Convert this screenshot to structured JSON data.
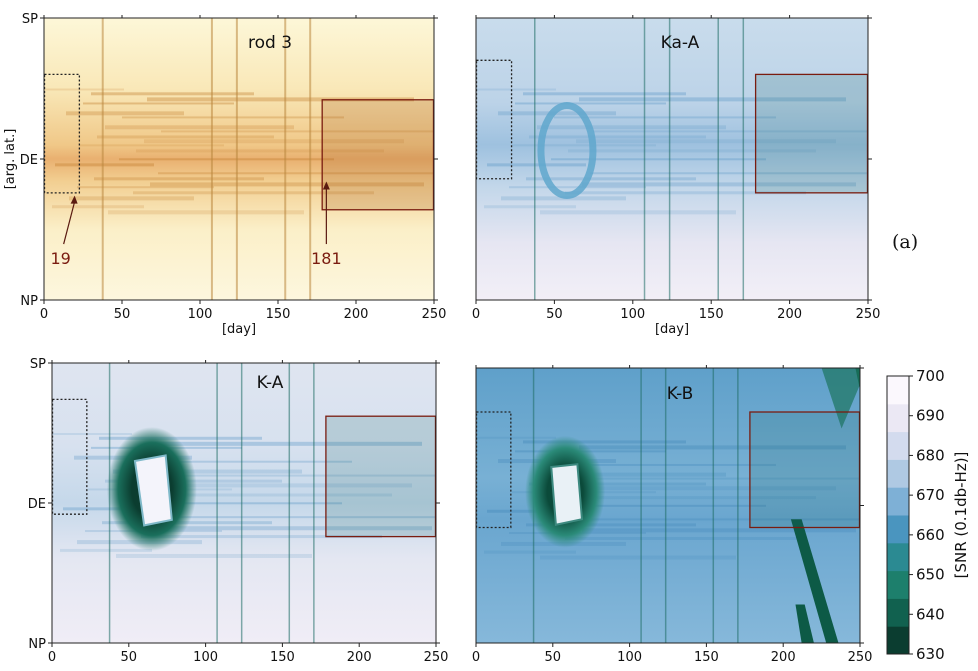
{
  "figure_label": "(a)",
  "y_tick_labels": [
    "SP",
    "DE",
    "NP"
  ],
  "y_axis_label": "[arg. lat.]",
  "x_axis_label": "[day]",
  "colors": {
    "rod_light": "#fdf6d6",
    "rod_dark": "#b86a20",
    "snr_light": "#eeeaf4",
    "snr_mid": "#6aa8cc",
    "snr_dark": "#0d4a3c",
    "box_solid": "#7a1c10",
    "box_dotted": "#222222"
  },
  "chart_data": [
    {
      "type": "heatmap",
      "title": "rod 3",
      "xlabel": "[day]",
      "ylabel": "[arg. lat.]",
      "xlim": [
        0,
        250
      ],
      "x_ticks": [
        0,
        50,
        100,
        150,
        200,
        250
      ],
      "y_ticks": [
        "SP",
        "DE",
        "NP"
      ],
      "annotations": [
        {
          "text": "19",
          "x": 19
        },
        {
          "text": "181",
          "x": 181
        }
      ],
      "boxes": [
        {
          "style": "dotted",
          "x": [
            0,
            23
          ],
          "y": [
            0.2,
            0.62
          ]
        },
        {
          "style": "solid",
          "x": [
            178,
            250
          ],
          "y": [
            0.29,
            0.68
          ]
        }
      ]
    },
    {
      "type": "heatmap",
      "title": "Ka-A",
      "xlabel": "[day]",
      "xlim": [
        0,
        250
      ],
      "x_ticks": [
        0,
        50,
        100,
        150,
        200,
        250
      ],
      "boxes": [
        {
          "style": "dotted",
          "x": [
            0,
            23
          ],
          "y": [
            0.15,
            0.57
          ]
        },
        {
          "style": "solid",
          "x": [
            178,
            250
          ],
          "y": [
            0.2,
            0.62
          ]
        }
      ]
    },
    {
      "type": "heatmap",
      "title": "K-A",
      "xlim": [
        0,
        250
      ],
      "x_ticks": [
        0,
        50,
        100,
        150,
        200,
        250
      ],
      "y_ticks": [
        "SP",
        "DE",
        "NP"
      ],
      "boxes": [
        {
          "style": "dotted",
          "x": [
            0,
            23
          ],
          "y": [
            0.13,
            0.54
          ]
        },
        {
          "style": "solid",
          "x": [
            178,
            250
          ],
          "y": [
            0.19,
            0.62
          ]
        }
      ]
    },
    {
      "type": "heatmap",
      "title": "K-B",
      "xlim": [
        0,
        250
      ],
      "x_ticks": [
        0,
        50,
        100,
        150,
        200,
        250
      ],
      "boxes": [
        {
          "style": "dotted",
          "x": [
            0,
            23
          ],
          "y": [
            0.16,
            0.58
          ]
        },
        {
          "style": "solid",
          "x": [
            178,
            250
          ],
          "y": [
            0.16,
            0.58
          ]
        }
      ]
    }
  ],
  "colorbar": {
    "label": "[SNR (0.1db-Hz)]",
    "min": 630,
    "max": 700,
    "ticks": [
      630,
      640,
      650,
      660,
      670,
      680,
      690,
      700
    ],
    "colors": [
      "#0b3d30",
      "#11614f",
      "#1d7f6c",
      "#2b8a92",
      "#4a95bf",
      "#7eb0d6",
      "#afc9e3",
      "#d3dbee",
      "#ebe8f4",
      "#fbf8fd"
    ]
  }
}
